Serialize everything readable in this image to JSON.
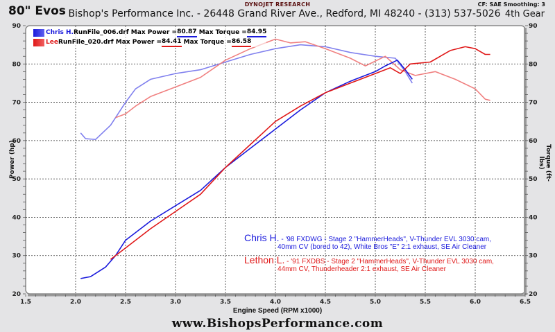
{
  "header": {
    "title": "80\" Evos",
    "brand": "DYNOJET RESEARCH",
    "shop": "Bishop's Performance Inc. - 26448 Grand River Ave., Redford, MI  48240 - (313) 537-5026",
    "cf": "CF: SAE  Smoothing: 3",
    "gear": "4th Gear"
  },
  "legend": [
    {
      "name": "Chris H.",
      "file": "RunFile_006.drf",
      "power_label": "Max Power = ",
      "power": "80.87",
      "torque_label": "Max Torque = ",
      "torque": "84.95",
      "color": "#1a1adc",
      "light": "#8080ee"
    },
    {
      "name": "Lee",
      "file": "RunFile_020.drf",
      "power_label": "Max Power = ",
      "power": "84.41",
      "torque_label": "Max Torque = ",
      "torque": "86.58",
      "color": "#e01818",
      "light": "#f08080"
    }
  ],
  "notes": [
    {
      "name": "Chris H.",
      "line1": " - '98 FXDWG - Stage 2 \"HammerHeads\", V-Thunder EVL 3030 cam,",
      "line2": "40mm CV (bored to 42), White Bros \"E\" 2:1 exhaust, SE Air Cleaner"
    },
    {
      "name": "Lethon L.",
      "line1": " - '91 FXDBS - Stage 2 \"HammerHeads\", V-Thunder EVL 3030 cam,",
      "line2": "44mm CV, Thunderheader 2:1 exhaust, SE Air Cleaner"
    }
  ],
  "footer": {
    "xlabel": "Engine Speed (RPM x1000)",
    "website": "www.BishopsPerformance.com"
  },
  "axes": {
    "ylabel_left": "Power (hp)",
    "ylabel_right": "Torque (ft-lbs)"
  },
  "chart_data": {
    "type": "line",
    "title": "80\" Evos",
    "xlabel": "Engine Speed (RPM x1000)",
    "ylabel": "Power (hp)",
    "ylabel_right": "Torque (ft-lbs)",
    "xlim": [
      1.5,
      6.5
    ],
    "ylim": [
      20,
      90
    ],
    "ylim_right": [
      20,
      90
    ],
    "xticks": [
      1.5,
      2.0,
      2.5,
      3.0,
      3.5,
      4.0,
      4.5,
      5.0,
      5.5,
      6.0,
      6.5
    ],
    "yticks": [
      20,
      30,
      40,
      50,
      60,
      70,
      80,
      90
    ],
    "grid": true,
    "legend_position": "top-left",
    "series": [
      {
        "name": "Chris H. Power (hp)",
        "color": "#1a1adc",
        "x": [
          2.05,
          2.15,
          2.3,
          2.4,
          2.5,
          2.75,
          3.0,
          3.25,
          3.5,
          3.75,
          4.0,
          4.25,
          4.5,
          4.75,
          5.0,
          5.1,
          5.22,
          5.3,
          5.37
        ],
        "y": [
          24,
          24.5,
          27,
          30,
          34,
          39,
          43,
          47,
          53,
          58,
          63,
          68,
          72.5,
          75.5,
          78,
          79.5,
          81,
          78.5,
          76
        ]
      },
      {
        "name": "Lee Power (hp)",
        "color": "#e01818",
        "x": [
          2.35,
          2.5,
          2.75,
          3.0,
          3.25,
          3.5,
          3.75,
          4.0,
          4.25,
          4.5,
          4.75,
          5.0,
          5.15,
          5.25,
          5.35,
          5.55,
          5.75,
          5.9,
          6.0,
          6.1,
          6.15
        ],
        "y": [
          29,
          32,
          37,
          41.5,
          46,
          53,
          59,
          65,
          69,
          72.5,
          75,
          77.5,
          79,
          77.5,
          80,
          80.5,
          83.5,
          84.5,
          84,
          82.5,
          82.5
        ]
      },
      {
        "name": "Chris H. Torque (ft-lbs)",
        "color": "#8080ee",
        "x": [
          2.05,
          2.1,
          2.2,
          2.35,
          2.5,
          2.6,
          2.75,
          3.0,
          3.25,
          3.5,
          3.75,
          4.0,
          4.25,
          4.5,
          4.75,
          5.0,
          5.2,
          5.3,
          5.37
        ],
        "y": [
          62,
          60.5,
          60.3,
          64,
          70,
          73.5,
          76,
          77.5,
          78.5,
          80.5,
          82.5,
          84,
          85,
          84.5,
          83,
          82,
          81.5,
          78,
          75
        ]
      },
      {
        "name": "Lee Torque (ft-lbs)",
        "color": "#f08080",
        "x": [
          2.4,
          2.5,
          2.6,
          2.75,
          3.0,
          3.25,
          3.5,
          3.75,
          4.0,
          4.15,
          4.3,
          4.5,
          4.75,
          4.9,
          5.1,
          5.25,
          5.4,
          5.6,
          5.8,
          6.0,
          6.1,
          6.15
        ],
        "y": [
          66,
          67,
          69,
          71.5,
          74,
          76.5,
          81,
          84,
          86.5,
          85.5,
          85.8,
          84,
          81.5,
          79.5,
          82,
          78.5,
          77,
          78,
          76,
          73.5,
          70.8,
          70.5
        ]
      }
    ]
  }
}
